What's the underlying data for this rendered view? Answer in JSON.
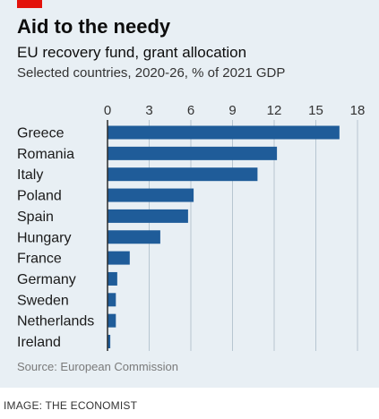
{
  "header": {
    "title": "Aid to the needy",
    "subtitle": "EU recovery fund, grant allocation",
    "description": "Selected countries, 2020-26, % of 2021 GDP"
  },
  "footer": {
    "source": "Source: European Commission",
    "credit": "IMAGE: THE ECONOMIST"
  },
  "colors": {
    "bar": "#1f5c99",
    "accent": "#e3120b",
    "background": "#e8eff4",
    "grid": "#b7c6d1"
  },
  "chart_data": {
    "type": "bar",
    "orientation": "horizontal",
    "title": "Aid to the needy",
    "subtitle": "EU recovery fund, grant allocation",
    "description": "Selected countries, 2020-26, % of 2021 GDP",
    "categories": [
      "Greece",
      "Romania",
      "Italy",
      "Poland",
      "Spain",
      "Hungary",
      "France",
      "Germany",
      "Sweden",
      "Netherlands",
      "Ireland"
    ],
    "values": [
      16.7,
      12.2,
      10.8,
      6.2,
      5.8,
      3.8,
      1.6,
      0.7,
      0.6,
      0.6,
      0.2
    ],
    "xlim": [
      0,
      18
    ],
    "ticks": [
      0,
      3,
      6,
      9,
      12,
      15,
      18
    ],
    "grid": true,
    "axis_position": "top",
    "source": "Source: European Commission"
  }
}
